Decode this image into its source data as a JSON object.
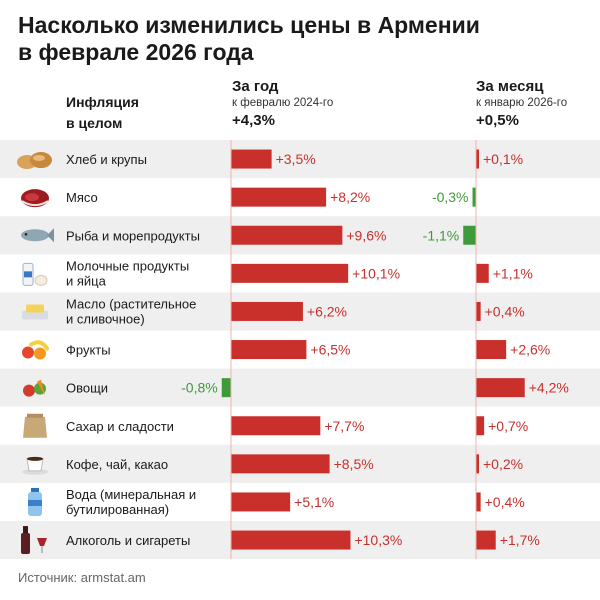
{
  "title_line1": "Насколько изменились цены в Армении",
  "title_line2": "в феврале 2026 года",
  "inflation_label_line1": "Инфляция",
  "inflation_label_line2": "в целом",
  "year_header": {
    "title": "За год",
    "subtitle": "к февралю 2024-го",
    "total": "+4,3%"
  },
  "month_header": {
    "title": "За месяц",
    "subtitle": "к январю 2026-го",
    "total": "+0,5%"
  },
  "source": "Источник: armstat.am",
  "colors": {
    "positive": "#c9302c",
    "negative": "#3f9b3a",
    "stripe": "#efefef",
    "label_positive": "#c9302c",
    "label_negative": "#3f9b3a"
  },
  "chart_data": {
    "type": "bar",
    "orientation": "horizontal",
    "categories": [
      {
        "line1": "Хлеб и крупы",
        "line2": "",
        "icon": "bread-icon"
      },
      {
        "line1": "Мясо",
        "line2": "",
        "icon": "meat-icon"
      },
      {
        "line1": "Рыба и морепродукты",
        "line2": "",
        "icon": "fish-icon"
      },
      {
        "line1": "Молочные продукты",
        "line2": "и яйца",
        "icon": "milk-icon"
      },
      {
        "line1": "Масло (растительное",
        "line2": "и сливочное)",
        "icon": "butter-icon"
      },
      {
        "line1": "Фрукты",
        "line2": "",
        "icon": "fruit-icon"
      },
      {
        "line1": "Овощи",
        "line2": "",
        "icon": "vegetables-icon"
      },
      {
        "line1": "Сахар и сладости",
        "line2": "",
        "icon": "sugar-sack-icon"
      },
      {
        "line1": "Кофе, чай, какао",
        "line2": "",
        "icon": "coffee-cup-icon"
      },
      {
        "line1": "Вода (минеральная и",
        "line2": "бутилированная)",
        "icon": "water-bottle-icon"
      },
      {
        "line1": "Алкоголь и сигареты",
        "line2": "",
        "icon": "wine-bottle-icon"
      }
    ],
    "series": [
      {
        "name": "За год",
        "values": [
          3.5,
          8.2,
          9.6,
          10.1,
          6.2,
          6.5,
          -0.8,
          7.7,
          8.5,
          5.1,
          10.3
        ],
        "labels": [
          "+3,5%",
          "+8,2%",
          "+9,6%",
          "+10,1%",
          "+6,2%",
          "+6,5%",
          "-0,8%",
          "+7,7%",
          "+8,5%",
          "+5,1%",
          "+10,3%"
        ]
      },
      {
        "name": "За месяц",
        "values": [
          0.1,
          -0.3,
          -1.1,
          1.1,
          0.4,
          2.6,
          4.2,
          0.7,
          0.2,
          0.4,
          1.7
        ],
        "labels": [
          "+0,1%",
          "-0,3%",
          "-1,1%",
          "+1,1%",
          "+0,4%",
          "+2,6%",
          "+4,2%",
          "+0,7%",
          "+0,2%",
          "+0,4%",
          "+1,7%"
        ]
      }
    ]
  }
}
